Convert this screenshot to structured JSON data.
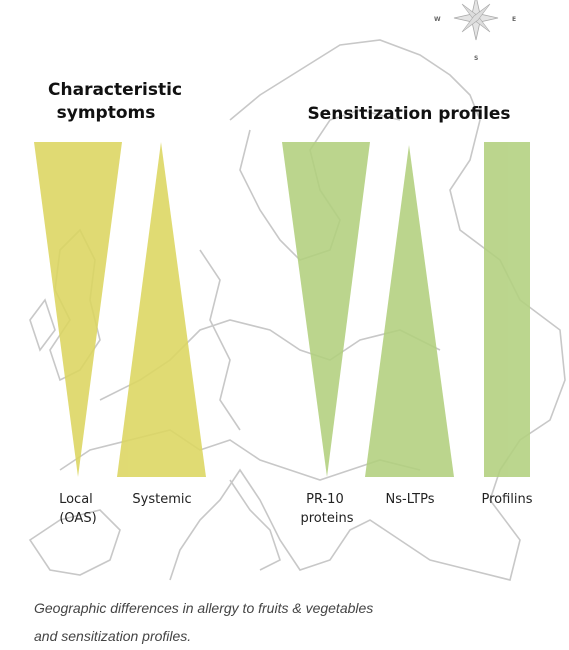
{
  "compass": {
    "west": "W",
    "east": "E",
    "south": "S"
  },
  "groups": [
    {
      "title": [
        "Characteristic",
        "symptoms"
      ],
      "items": [
        {
          "label": [
            "Local",
            "(OAS)"
          ]
        },
        {
          "label": [
            "Systemic"
          ]
        }
      ]
    },
    {
      "title": [
        "Sensitization profiles"
      ],
      "items": [
        {
          "label": [
            "PR-10",
            "proteins"
          ]
        },
        {
          "label": [
            "Ns-LTPs"
          ]
        },
        {
          "label": [
            "Profilins"
          ]
        }
      ]
    }
  ],
  "caption": [
    "Geographic differences in allergy to fruits & vegetables",
    "and sensitization profiles."
  ]
}
